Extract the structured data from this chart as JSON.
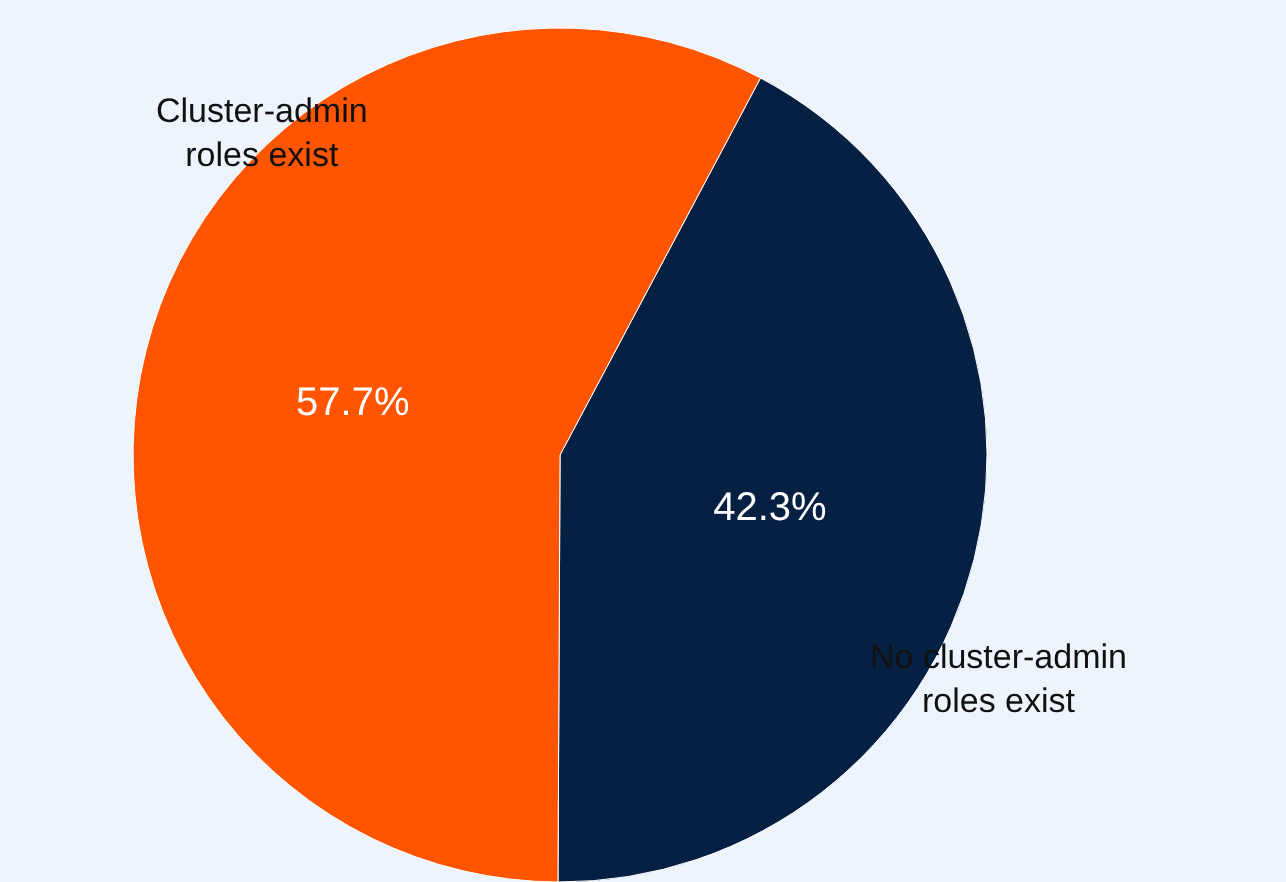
{
  "chart_data": {
    "type": "pie",
    "categories": [
      "No cluster-admin roles exist",
      "Cluster-admin roles exist"
    ],
    "values": [
      42.3,
      57.7
    ],
    "colors": [
      "#062044",
      "#ff5400"
    ],
    "value_labels": [
      "42.3%",
      "57.7%"
    ],
    "legend": false
  }
}
